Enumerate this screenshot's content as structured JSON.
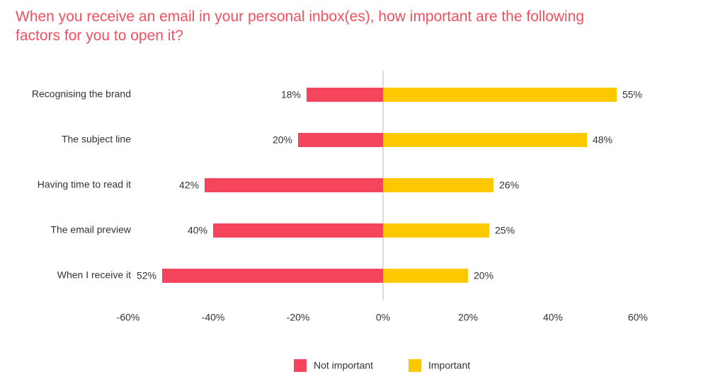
{
  "chart_data": {
    "type": "diverging-bar",
    "title": "When you receive an email in your personal inbox(es), how important are the following factors for you to open it?",
    "categories": [
      "Recognising the brand",
      "The subject line",
      "Having time to read it",
      "The email preview",
      "When I receive it"
    ],
    "series": [
      {
        "name": "Not important",
        "color": "#f5455c",
        "values": [
          -18,
          -20,
          -42,
          -40,
          -52
        ],
        "value_labels": [
          "18%",
          "20%",
          "42%",
          "40%",
          "52%"
        ]
      },
      {
        "name": "Important",
        "color": "#fcc800",
        "values": [
          55,
          48,
          26,
          25,
          20
        ],
        "value_labels": [
          "55%",
          "48%",
          "26%",
          "25%",
          "20%"
        ]
      }
    ],
    "xlim": [
      -60,
      60
    ],
    "xticks": [
      {
        "value": -60,
        "label": "-60%"
      },
      {
        "value": -40,
        "label": "-40%"
      },
      {
        "value": -20,
        "label": "-20%"
      },
      {
        "value": 0,
        "label": "0%"
      },
      {
        "value": 20,
        "label": "20%"
      },
      {
        "value": 40,
        "label": "40%"
      },
      {
        "value": 60,
        "label": "60%"
      }
    ],
    "legend": "bottom"
  }
}
